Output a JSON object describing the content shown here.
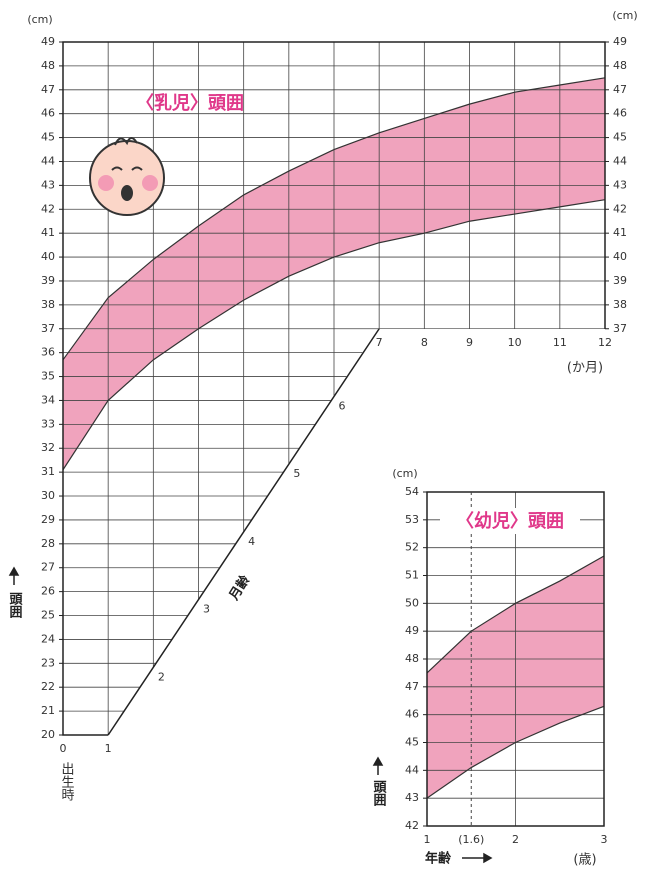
{
  "chart_data": [
    {
      "type": "band",
      "title": "〈乳児〉頭囲",
      "y_unit": "(cm)",
      "x_unit": "(か月)",
      "y_label": "頭囲",
      "x_label": "月齢",
      "x_origin_label": "出生時",
      "x": [
        0,
        1,
        2,
        3,
        4,
        5,
        6,
        7,
        8,
        9,
        10,
        11,
        12
      ],
      "upper": [
        35.7,
        38.3,
        39.9,
        41.3,
        42.6,
        43.6,
        44.5,
        45.2,
        45.8,
        46.4,
        46.9,
        47.2,
        47.5
      ],
      "lower": [
        31.1,
        34.0,
        35.7,
        37.0,
        38.2,
        39.2,
        40.0,
        40.6,
        41.0,
        41.5,
        41.8,
        42.1,
        42.4
      ],
      "color": "#f0a3bd",
      "xlim": [
        0,
        12
      ],
      "ylim": [
        20,
        49
      ],
      "xticks": [
        0,
        1,
        2,
        3,
        4,
        5,
        6,
        7,
        8,
        9,
        10,
        11,
        12
      ],
      "yticks": [
        20,
        21,
        22,
        23,
        24,
        25,
        26,
        27,
        28,
        29,
        30,
        31,
        32,
        33,
        34,
        35,
        36,
        37,
        38,
        39,
        40,
        41,
        42,
        43,
        44,
        45,
        46,
        47,
        48,
        49
      ],
      "y2ticks": [
        37,
        38,
        39,
        40,
        41,
        42,
        43,
        44,
        45,
        46,
        47,
        48,
        49
      ],
      "grid": true
    },
    {
      "type": "band",
      "title": "〈幼児〉頭囲",
      "y_unit": "(cm)",
      "x_unit": "(歳)",
      "y_label": "頭囲",
      "x_label": "年齢",
      "x": [
        1,
        1.5,
        2,
        2.5,
        3
      ],
      "upper": [
        47.5,
        49.0,
        50.0,
        50.8,
        51.7
      ],
      "lower": [
        43.0,
        44.1,
        45.0,
        45.7,
        46.3
      ],
      "color": "#f0a3bd",
      "xlim": [
        1,
        3
      ],
      "ylim": [
        42,
        54
      ],
      "xticks": [
        1,
        2,
        3
      ],
      "marker": {
        "value": 1.5,
        "label": "(1.6)"
      },
      "yticks": [
        42,
        43,
        44,
        45,
        46,
        47,
        48,
        49,
        50,
        51,
        52,
        53,
        54
      ],
      "grid": true
    }
  ]
}
